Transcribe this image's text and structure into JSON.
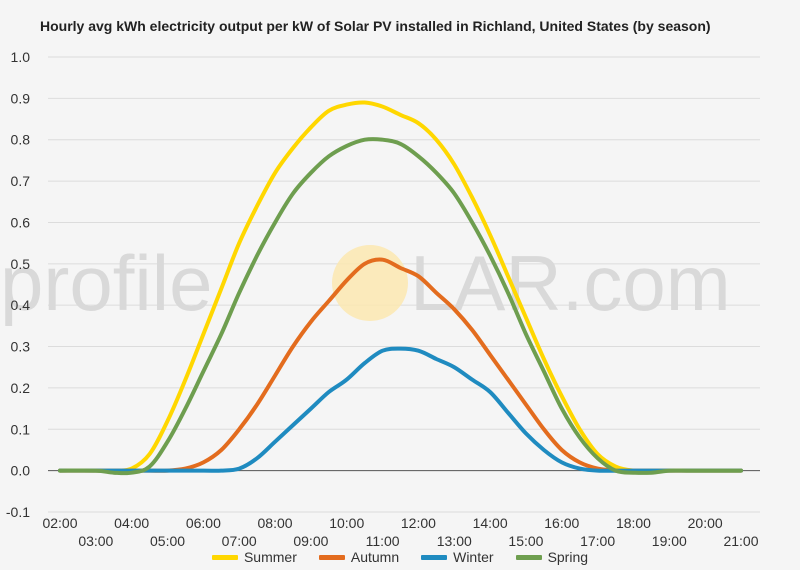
{
  "title": "Hourly avg kWh electricity output per kW of Solar PV installed in Richland, United States (by season)",
  "watermark": {
    "left": "profile",
    "right": "LAR.com"
  },
  "chart_data": {
    "type": "line",
    "title": "Hourly avg kWh electricity output per kW of Solar PV installed in Richland, United States (by season)",
    "xlabel": "",
    "ylabel": "",
    "ylim": [
      -0.1,
      1.0
    ],
    "yticks": [
      -0.1,
      0.0,
      0.1,
      0.2,
      0.3,
      0.4,
      0.5,
      0.6,
      0.7,
      0.8,
      0.9,
      1.0
    ],
    "ytick_labels": [
      "-0.1",
      "0.0",
      "0.1",
      "0.2",
      "0.3",
      "0.4",
      "0.5",
      "0.6",
      "0.7",
      "0.8",
      "0.9",
      "1.0"
    ],
    "xlim": [
      2,
      21
    ],
    "xtick_labels": [
      "02:00",
      "03:00",
      "04:00",
      "05:00",
      "06:00",
      "07:00",
      "08:00",
      "09:00",
      "10:00",
      "11:00",
      "12:00",
      "13:00",
      "14:00",
      "15:00",
      "16:00",
      "17:00",
      "18:00",
      "19:00",
      "20:00",
      "21:00"
    ],
    "grid": true,
    "legend": "bottom",
    "series": [
      {
        "name": "Summer",
        "color": "#FFD700",
        "x": [
          2,
          3,
          3.5,
          4,
          4.5,
          5,
          5.5,
          6,
          6.5,
          7,
          7.5,
          8,
          8.5,
          9,
          9.5,
          10,
          10.5,
          11,
          11.5,
          12,
          12.5,
          13,
          13.5,
          14,
          14.5,
          15,
          15.5,
          16,
          16.5,
          17,
          17.5,
          18,
          18.5,
          19,
          19.5,
          20,
          21
        ],
        "y": [
          0.0,
          0.0,
          0.0,
          0.005,
          0.04,
          0.12,
          0.22,
          0.33,
          0.44,
          0.55,
          0.64,
          0.72,
          0.78,
          0.83,
          0.87,
          0.885,
          0.89,
          0.88,
          0.86,
          0.84,
          0.8,
          0.74,
          0.66,
          0.57,
          0.47,
          0.37,
          0.27,
          0.18,
          0.1,
          0.04,
          0.01,
          0.0,
          0.0,
          0.0,
          0.0,
          0.0,
          0.0
        ]
      },
      {
        "name": "Autumn",
        "color": "#E36C1E",
        "x": [
          2,
          3,
          4,
          4.5,
          5,
          5.5,
          6,
          6.5,
          7,
          7.5,
          8,
          8.5,
          9,
          9.5,
          10,
          10.5,
          11,
          11.5,
          12,
          12.5,
          13,
          13.5,
          14,
          14.5,
          15,
          15.5,
          16,
          16.5,
          17,
          17.5,
          18,
          19,
          20,
          21
        ],
        "y": [
          0.0,
          0.0,
          0.0,
          0.0,
          0.0,
          0.005,
          0.02,
          0.05,
          0.1,
          0.16,
          0.23,
          0.3,
          0.36,
          0.41,
          0.46,
          0.5,
          0.51,
          0.49,
          0.47,
          0.43,
          0.39,
          0.34,
          0.28,
          0.22,
          0.16,
          0.1,
          0.05,
          0.02,
          0.005,
          0.0,
          0.0,
          0.0,
          0.0,
          0.0
        ]
      },
      {
        "name": "Winter",
        "color": "#1F8BC0",
        "x": [
          2,
          3,
          4,
          5,
          6,
          6.5,
          7,
          7.5,
          8,
          8.5,
          9,
          9.5,
          10,
          10.5,
          11,
          11.5,
          12,
          12.5,
          13,
          13.5,
          14,
          14.5,
          15,
          15.5,
          16,
          16.5,
          17,
          18,
          19,
          20,
          21
        ],
        "y": [
          0.0,
          0.0,
          0.0,
          0.0,
          0.0,
          0.0,
          0.005,
          0.03,
          0.07,
          0.11,
          0.15,
          0.19,
          0.22,
          0.26,
          0.29,
          0.295,
          0.29,
          0.27,
          0.25,
          0.22,
          0.19,
          0.14,
          0.09,
          0.05,
          0.02,
          0.005,
          0.0,
          0.0,
          0.0,
          0.0,
          0.0
        ]
      },
      {
        "name": "Spring",
        "color": "#6E9E4F",
        "x": [
          2,
          3,
          3.5,
          4,
          4.5,
          5,
          5.5,
          6,
          6.5,
          7,
          7.5,
          8,
          8.5,
          9,
          9.5,
          10,
          10.5,
          11,
          11.5,
          12,
          12.5,
          13,
          13.5,
          14,
          14.5,
          15,
          15.5,
          16,
          16.5,
          17,
          17.5,
          18,
          18.5,
          19,
          19.5,
          20,
          21
        ],
        "y": [
          0.0,
          0.0,
          -0.005,
          -0.005,
          0.01,
          0.07,
          0.15,
          0.24,
          0.33,
          0.43,
          0.52,
          0.6,
          0.67,
          0.72,
          0.76,
          0.785,
          0.8,
          0.8,
          0.79,
          0.76,
          0.72,
          0.67,
          0.6,
          0.52,
          0.43,
          0.33,
          0.24,
          0.15,
          0.08,
          0.03,
          0.0,
          -0.005,
          -0.005,
          0.0,
          0.0,
          0.0,
          0.0
        ]
      }
    ]
  }
}
